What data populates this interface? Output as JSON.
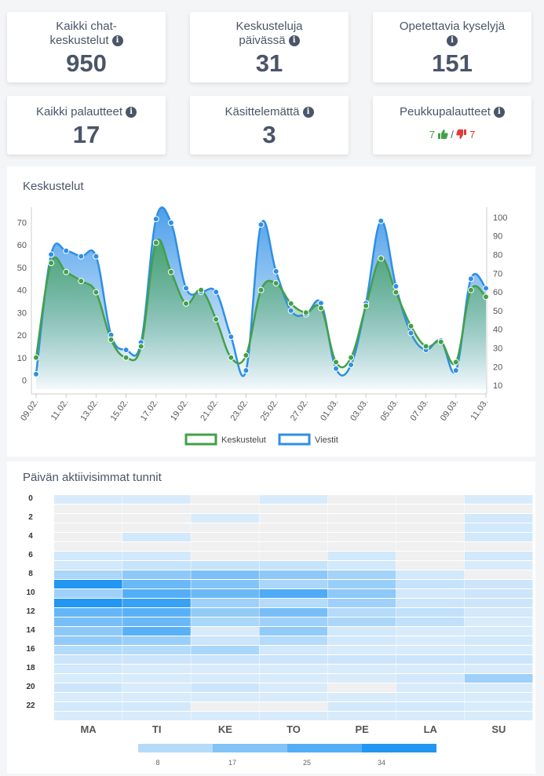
{
  "cards": [
    {
      "title_line1": "Kaikki chat-",
      "title_line2": "keskustelut",
      "value": "950"
    },
    {
      "title_line1": "Keskusteluja",
      "title_line2": "päivässä",
      "value": "31"
    },
    {
      "title_line1": "Opetettavia kyselyjä",
      "title_line2": "",
      "value": "151"
    },
    {
      "title_line1": "Kaikki palautteet",
      "title_line2": "",
      "value": "17"
    },
    {
      "title_line1": "Käsittelemättä",
      "title_line2": "",
      "value": "3"
    },
    {
      "title_line1": "Peukkupalautteet",
      "title_line2": "",
      "value": ""
    }
  ],
  "feedback": {
    "up": "7",
    "down": "7",
    "separator": "/"
  },
  "info_glyph": "i",
  "line_panel": {
    "title": "Keskustelut"
  },
  "heatmap_panel": {
    "title": "Päivän aktiivisimmat tunnit"
  },
  "colors": {
    "green": "#43a047",
    "blue": "#2e8fe6",
    "heat_low": "#f0f0f0",
    "heat_high": "#2196f3"
  },
  "chart_data": [
    {
      "type": "line",
      "title": "Keskustelut",
      "x": [
        "09.02.",
        "10.02.",
        "11.02.",
        "12.02.",
        "13.02.",
        "14.02.",
        "15.02.",
        "16.02.",
        "17.02.",
        "18.02.",
        "19.02.",
        "20.02.",
        "21.02.",
        "22.02.",
        "23.02.",
        "24.02.",
        "25.02.",
        "26.02.",
        "27.02.",
        "28.02.",
        "01.03.",
        "02.03.",
        "03.03.",
        "04.03.",
        "05.03.",
        "06.03.",
        "07.03.",
        "08.03.",
        "09.03.",
        "10.03.",
        "11.03."
      ],
      "x_tick_labels": [
        "09.02.",
        "11.02.",
        "13.02.",
        "15.02.",
        "17.02.",
        "19.02.",
        "21.02.",
        "23.02.",
        "25.02.",
        "27.02.",
        "01.03.",
        "03.03.",
        "05.03.",
        "07.03.",
        "09.03.",
        "11.03."
      ],
      "series": [
        {
          "name": "Keskustelut",
          "axis": "left",
          "values": [
            10,
            52,
            48,
            44,
            39,
            18,
            10,
            15,
            61,
            48,
            34,
            40,
            27,
            10,
            11,
            40,
            43,
            34,
            30,
            32,
            8,
            10,
            33,
            54,
            39,
            24,
            15,
            17,
            8,
            40,
            37
          ]
        },
        {
          "name": "Viestit",
          "axis": "right",
          "values": [
            16,
            80,
            82,
            79,
            79,
            37,
            29,
            33,
            99,
            97,
            62,
            60,
            60,
            36,
            18,
            96,
            71,
            50,
            48,
            54,
            19,
            21,
            54,
            98,
            63,
            38,
            29,
            34,
            18,
            67,
            62
          ]
        }
      ],
      "y_left": {
        "ticks": [
          0,
          10,
          20,
          30,
          40,
          50,
          60,
          70
        ],
        "range": [
          -4,
          74
        ]
      },
      "y_right": {
        "ticks": [
          10,
          20,
          30,
          40,
          50,
          60,
          70,
          80,
          90,
          100
        ],
        "range": [
          8,
          102
        ]
      },
      "legend": [
        "Keskustelut",
        "Viestit"
      ],
      "legend_position": "bottom",
      "grid": false
    },
    {
      "type": "heatmap",
      "title": "Päivän aktiivisimmat tunnit",
      "days": [
        "MA",
        "TI",
        "KE",
        "TO",
        "PE",
        "LA",
        "SU"
      ],
      "hour_labels": [
        "0",
        "2",
        "4",
        "6",
        "8",
        "10",
        "12",
        "14",
        "16",
        "18",
        "20",
        "22"
      ],
      "hours": [
        0,
        1,
        2,
        3,
        4,
        5,
        6,
        7,
        8,
        9,
        10,
        11,
        12,
        13,
        14,
        15,
        16,
        17,
        18,
        19,
        20,
        21,
        22,
        23
      ],
      "values": [
        [
          2,
          2,
          0,
          2,
          0,
          0,
          2
        ],
        [
          0,
          0,
          0,
          0,
          0,
          0,
          0
        ],
        [
          0,
          0,
          2,
          0,
          0,
          0,
          3
        ],
        [
          0,
          0,
          0,
          0,
          0,
          0,
          3
        ],
        [
          0,
          3,
          0,
          0,
          0,
          0,
          3
        ],
        [
          0,
          0,
          0,
          0,
          0,
          0,
          0
        ],
        [
          3,
          3,
          0,
          0,
          3,
          0,
          3
        ],
        [
          3,
          5,
          5,
          5,
          3,
          0,
          2
        ],
        [
          10,
          15,
          18,
          15,
          11,
          3,
          0
        ],
        [
          34,
          21,
          17,
          10,
          13,
          5,
          4
        ],
        [
          12,
          25,
          21,
          26,
          15,
          3,
          4
        ],
        [
          34,
          30,
          12,
          8,
          12,
          4,
          4
        ],
        [
          22,
          24,
          14,
          19,
          8,
          6,
          3
        ],
        [
          19,
          21,
          10,
          12,
          10,
          6,
          2
        ],
        [
          15,
          24,
          2,
          14,
          3,
          2,
          2
        ],
        [
          14,
          13,
          4,
          8,
          3,
          2,
          3
        ],
        [
          8,
          8,
          10,
          3,
          2,
          2,
          2
        ],
        [
          4,
          4,
          4,
          4,
          4,
          4,
          4
        ],
        [
          3,
          2,
          2,
          2,
          2,
          2,
          2
        ],
        [
          2,
          2,
          2,
          2,
          2,
          3,
          12
        ],
        [
          4,
          2,
          4,
          2,
          0,
          2,
          2
        ],
        [
          2,
          2,
          2,
          2,
          2,
          2,
          2
        ],
        [
          3,
          3,
          0,
          0,
          3,
          3,
          2
        ],
        [
          2,
          2,
          2,
          2,
          2,
          2,
          2
        ]
      ],
      "scale_ticks": [
        8,
        17,
        25,
        34
      ],
      "scale_max": 34
    }
  ]
}
